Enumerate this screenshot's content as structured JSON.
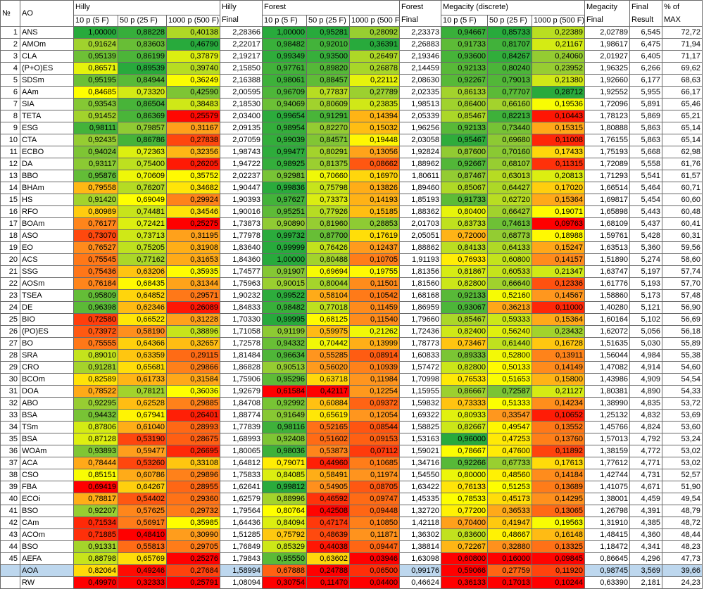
{
  "headers": {
    "no": "№",
    "ao": "AO",
    "hilly": "Hilly",
    "hilly_final_1": "Hilly",
    "hilly_final_2": "Final",
    "forest": "Forest",
    "forest_final_1": "Forest",
    "forest_final_2": "Final",
    "megacity": "Megacity (discrete)",
    "megacity_final_1": "Megacity",
    "megacity_final_2": "Final",
    "final_result_1": "Final",
    "final_result_2": "Result",
    "pct_max_1": "% of",
    "pct_max_2": "MAX",
    "sub_10p": "10 p (5 F)",
    "sub_50p": "50 p (25 F)",
    "sub_1000p": "1000 p (500 F)",
    "sub_50p_trunc": "50 p (25 F)",
    "sub_1000p_trunc": "1000 p (500 F)"
  },
  "rows": [
    {
      "n": "1",
      "ao": "ANS",
      "v": [
        "1,00000",
        "0,88228",
        "0,40138",
        "2,28366",
        "1,00000",
        "0,95281",
        "0,28092",
        "2,23373",
        "0,94667",
        "0,85733",
        "0,22389",
        "2,02789",
        "6,545",
        "72,72"
      ]
    },
    {
      "n": "2",
      "ao": "AMOm",
      "v": [
        "0,91624",
        "0,83603",
        "0,46790",
        "2,22017",
        "0,98482",
        "0,92010",
        "0,36391",
        "2,26883",
        "0,91733",
        "0,81707",
        "0,21167",
        "1,98617",
        "6,475",
        "71,94"
      ]
    },
    {
      "n": "3",
      "ao": "CLA",
      "v": [
        "0,95139",
        "0,86199",
        "0,37879",
        "2,19217",
        "0,99349",
        "0,93500",
        "0,26497",
        "2,19346",
        "0,93600",
        "0,84267",
        "0,24060",
        "2,01927",
        "6,405",
        "71,17"
      ]
    },
    {
      "n": "4",
      "ao": "(P+O)ES",
      "v": [
        "0,86571",
        "0,89539",
        "0,39740",
        "2,15850",
        "0,97761",
        "0,89820",
        "0,26878",
        "2,14459",
        "0,92133",
        "0,80240",
        "0,23952",
        "1,96325",
        "6,266",
        "69,62"
      ]
    },
    {
      "n": "5",
      "ao": "SDSm",
      "v": [
        "0,95195",
        "0,84944",
        "0,36249",
        "2,16388",
        "0,98061",
        "0,88457",
        "0,22112",
        "2,08630",
        "0,92267",
        "0,79013",
        "0,21380",
        "1,92660",
        "6,177",
        "68,63"
      ]
    },
    {
      "n": "6",
      "ao": "AAm",
      "v": [
        "0,84685",
        "0,73320",
        "0,42590",
        "2,00595",
        "0,96709",
        "0,77837",
        "0,27789",
        "2,02335",
        "0,86133",
        "0,77707",
        "0,28712",
        "1,92552",
        "5,955",
        "66,17"
      ]
    },
    {
      "n": "7",
      "ao": "SIA",
      "v": [
        "0,93543",
        "0,86504",
        "0,38483",
        "2,18530",
        "0,94069",
        "0,80609",
        "0,23835",
        "1,98513",
        "0,86400",
        "0,66160",
        "0,19536",
        "1,72096",
        "5,891",
        "65,46"
      ]
    },
    {
      "n": "8",
      "ao": "TETA",
      "v": [
        "0,91452",
        "0,86369",
        "0,25579",
        "2,03400",
        "0,99654",
        "0,91291",
        "0,14394",
        "2,05339",
        "0,85467",
        "0,82213",
        "0,10443",
        "1,78123",
        "5,869",
        "65,21"
      ]
    },
    {
      "n": "9",
      "ao": "ESG",
      "v": [
        "0,98111",
        "0,79857",
        "0,31167",
        "2,09135",
        "0,98954",
        "0,82270",
        "0,15032",
        "1,96256",
        "0,92133",
        "0,73440",
        "0,15315",
        "1,80888",
        "5,863",
        "65,14"
      ]
    },
    {
      "n": "10",
      "ao": "CTA",
      "v": [
        "0,92435",
        "0,86786",
        "0,27838",
        "2,07059",
        "0,99039",
        "0,84571",
        "0,19448",
        "2,03058",
        "0,95467",
        "0,69680",
        "0,11008",
        "1,76155",
        "5,863",
        "65,14"
      ]
    },
    {
      "n": "11",
      "ao": "ECBO",
      "v": [
        "0,94024",
        "0,72363",
        "0,32356",
        "1,98743",
        "0,99477",
        "0,80291",
        "0,13056",
        "1,92824",
        "0,87600",
        "0,70160",
        "0,17433",
        "1,75193",
        "5,668",
        "62,98"
      ]
    },
    {
      "n": "12",
      "ao": "DA",
      "v": [
        "0,93117",
        "0,75400",
        "0,26205",
        "1,94722",
        "0,98925",
        "0,81375",
        "0,08662",
        "1,88962",
        "0,92667",
        "0,68107",
        "0,11315",
        "1,72089",
        "5,558",
        "61,76"
      ]
    },
    {
      "n": "13",
      "ao": "BBO",
      "v": [
        "0,95876",
        "0,70609",
        "0,35752",
        "2,02237",
        "0,92981",
        "0,70660",
        "0,16970",
        "1,80611",
        "0,87467",
        "0,63013",
        "0,20813",
        "1,71293",
        "5,541",
        "61,57"
      ]
    },
    {
      "n": "14",
      "ao": "BHAm",
      "v": [
        "0,79558",
        "0,76207",
        "0,34682",
        "1,90447",
        "0,99836",
        "0,75798",
        "0,13826",
        "1,89460",
        "0,85067",
        "0,64427",
        "0,17020",
        "1,66514",
        "5,464",
        "60,71"
      ]
    },
    {
      "n": "15",
      "ao": "HS",
      "v": [
        "0,91420",
        "0,69049",
        "0,29924",
        "1,90393",
        "0,97627",
        "0,73373",
        "0,14193",
        "1,85193",
        "0,91733",
        "0,62720",
        "0,15364",
        "1,69817",
        "5,454",
        "60,60"
      ]
    },
    {
      "n": "16",
      "ao": "RFO",
      "v": [
        "0,80989",
        "0,74481",
        "0,34546",
        "1,90016",
        "0,95251",
        "0,77926",
        "0,15185",
        "1,88362",
        "0,80400",
        "0,66427",
        "0,19071",
        "1,65898",
        "5,443",
        "60,48"
      ]
    },
    {
      "n": "17",
      "ao": "BOAm",
      "v": [
        "0,76177",
        "0,72421",
        "0,25275",
        "1,73873",
        "0,90890",
        "0,81960",
        "0,28853",
        "2,01703",
        "0,83733",
        "0,74613",
        "0,09763",
        "1,68109",
        "5,437",
        "60,41"
      ]
    },
    {
      "n": "18",
      "ao": "ASO",
      "v": [
        "0,73070",
        "0,73713",
        "0,31195",
        "1,77978",
        "0,99732",
        "0,87700",
        "0,17619",
        "2,05051",
        "0,72000",
        "0,68773",
        "0,18988",
        "1,59761",
        "5,428",
        "60,31"
      ]
    },
    {
      "n": "19",
      "ao": "EO",
      "v": [
        "0,76527",
        "0,75205",
        "0,31908",
        "1,83640",
        "0,99999",
        "0,76426",
        "0,12437",
        "1,88862",
        "0,84133",
        "0,64133",
        "0,15247",
        "1,63513",
        "5,360",
        "59,56"
      ]
    },
    {
      "n": "20",
      "ao": "ACS",
      "v": [
        "0,75545",
        "0,77162",
        "0,31653",
        "1,84360",
        "1,00000",
        "0,80488",
        "0,10705",
        "1,91193",
        "0,76933",
        "0,60800",
        "0,14157",
        "1,51890",
        "5,274",
        "58,60"
      ]
    },
    {
      "n": "21",
      "ao": "SSG",
      "v": [
        "0,75436",
        "0,63206",
        "0,35935",
        "1,74577",
        "0,91907",
        "0,69694",
        "0,19755",
        "1,81356",
        "0,81867",
        "0,60533",
        "0,21347",
        "1,63747",
        "5,197",
        "57,74"
      ]
    },
    {
      "n": "22",
      "ao": "AOSm",
      "v": [
        "0,76184",
        "0,68435",
        "0,31344",
        "1,75963",
        "0,90015",
        "0,80044",
        "0,11501",
        "1,81560",
        "0,82800",
        "0,66640",
        "0,12336",
        "1,61776",
        "5,193",
        "57,70"
      ]
    },
    {
      "n": "23",
      "ao": "TSEA",
      "v": [
        "0,95809",
        "0,64852",
        "0,29571",
        "1,90232",
        "0,99522",
        "0,58104",
        "0,10542",
        "1,68168",
        "0,92133",
        "0,52160",
        "0,14567",
        "1,58860",
        "5,173",
        "57,48"
      ]
    },
    {
      "n": "24",
      "ao": "DE",
      "v": [
        "0,96398",
        "0,62346",
        "0,26089",
        "1,84833",
        "0,98482",
        "0,77018",
        "0,11459",
        "1,86959",
        "0,93067",
        "0,36213",
        "0,11000",
        "1,40280",
        "5,121",
        "56,90"
      ]
    },
    {
      "n": "25",
      "ao": "BIO",
      "v": [
        "0,72580",
        "0,66522",
        "0,31228",
        "1,70330",
        "0,99995",
        "0,68125",
        "0,11540",
        "1,79660",
        "0,85467",
        "0,59333",
        "0,15364",
        "1,60164",
        "5,102",
        "56,69"
      ]
    },
    {
      "n": "26",
      "ao": "(PO)ES",
      "v": [
        "0,73972",
        "0,58190",
        "0,38896",
        "1,71058",
        "0,91199",
        "0,59975",
        "0,21262",
        "1,72436",
        "0,82400",
        "0,56240",
        "0,23432",
        "1,62072",
        "5,056",
        "56,18"
      ]
    },
    {
      "n": "27",
      "ao": "BO",
      "v": [
        "0,75555",
        "0,64366",
        "0,32657",
        "1,72578",
        "0,94332",
        "0,70442",
        "0,13999",
        "1,78773",
        "0,73467",
        "0,61440",
        "0,16728",
        "1,51635",
        "5,030",
        "55,89"
      ]
    },
    {
      "n": "28",
      "ao": "SRA",
      "v": [
        "0,89010",
        "0,63359",
        "0,29115",
        "1,81484",
        "0,96634",
        "0,55285",
        "0,08914",
        "1,60833",
        "0,89333",
        "0,52800",
        "0,13911",
        "1,56044",
        "4,984",
        "55,38"
      ]
    },
    {
      "n": "29",
      "ao": "CRO",
      "v": [
        "0,91281",
        "0,65681",
        "0,29866",
        "1,86828",
        "0,90513",
        "0,56020",
        "0,10939",
        "1,57472",
        "0,82800",
        "0,50133",
        "0,14149",
        "1,47082",
        "4,914",
        "54,60"
      ]
    },
    {
      "n": "30",
      "ao": "BCOm",
      "v": [
        "0,82589",
        "0,61733",
        "0,31584",
        "1,75906",
        "0,95296",
        "0,63718",
        "0,11984",
        "1,70998",
        "0,76533",
        "0,51653",
        "0,15800",
        "1,43986",
        "4,909",
        "54,54"
      ]
    },
    {
      "n": "31",
      "ao": "DOA",
      "v": [
        "0,78522",
        "0,78121",
        "0,36036",
        "1,92679",
        "0,61584",
        "0,42117",
        "0,12254",
        "1,15955",
        "0,86667",
        "0,72587",
        "0,21127",
        "1,80381",
        "4,890",
        "54,33"
      ]
    },
    {
      "n": "32",
      "ao": "ABO",
      "v": [
        "0,92295",
        "0,62528",
        "0,29885",
        "1,84708",
        "0,92992",
        "0,60884",
        "0,09372",
        "1,59832",
        "0,73333",
        "0,51333",
        "0,14234",
        "1,38990",
        "4,835",
        "53,72"
      ]
    },
    {
      "n": "33",
      "ao": "BSA",
      "v": [
        "0,94432",
        "0,67941",
        "0,26401",
        "1,88774",
        "0,91649",
        "0,65619",
        "0,12054",
        "1,69322",
        "0,80933",
        "0,33547",
        "0,10652",
        "1,25132",
        "4,832",
        "53,69"
      ]
    },
    {
      "n": "34",
      "ao": "TSm",
      "v": [
        "0,87806",
        "0,61040",
        "0,28993",
        "1,77839",
        "0,98116",
        "0,52165",
        "0,08544",
        "1,58825",
        "0,82667",
        "0,49547",
        "0,13552",
        "1,45766",
        "4,824",
        "53,60"
      ]
    },
    {
      "n": "35",
      "ao": "BSA",
      "v": [
        "0,87128",
        "0,53190",
        "0,28675",
        "1,68993",
        "0,92408",
        "0,51602",
        "0,09153",
        "1,53163",
        "0,96000",
        "0,47253",
        "0,13760",
        "1,57013",
        "4,792",
        "53,24"
      ]
    },
    {
      "n": "36",
      "ao": "WOAm",
      "v": [
        "0,93893",
        "0,59477",
        "0,26695",
        "1,80065",
        "0,98036",
        "0,53873",
        "0,07112",
        "1,59021",
        "0,78667",
        "0,47600",
        "0,11892",
        "1,38159",
        "4,772",
        "53,02"
      ]
    },
    {
      "n": "37",
      "ao": "ACA",
      "v": [
        "0,78444",
        "0,53260",
        "0,33108",
        "1,64812",
        "0,79071",
        "0,44960",
        "0,10685",
        "1,34716",
        "0,92266",
        "0,67733",
        "0,17613",
        "1,77612",
        "4,771",
        "53,02"
      ]
    },
    {
      "n": "38",
      "ao": "CSO",
      "v": [
        "0,85151",
        "0,60786",
        "0,29896",
        "1,75833",
        "0,84085",
        "0,58491",
        "0,11974",
        "1,54550",
        "0,80000",
        "0,48560",
        "0,14184",
        "1,42744",
        "4,731",
        "52,57"
      ]
    },
    {
      "n": "39",
      "ao": "FBA",
      "v": [
        "0,69419",
        "0,64267",
        "0,28955",
        "1,62641",
        "0,99812",
        "0,54905",
        "0,08705",
        "1,63422",
        "0,76133",
        "0,51253",
        "0,13689",
        "1,41075",
        "4,671",
        "51,90"
      ]
    },
    {
      "n": "40",
      "ao": "ECOi",
      "v": [
        "0,78817",
        "0,54402",
        "0,29360",
        "1,62579",
        "0,88996",
        "0,46592",
        "0,09747",
        "1,45335",
        "0,78533",
        "0,45173",
        "0,14295",
        "1,38001",
        "4,459",
        "49,54"
      ]
    },
    {
      "n": "41",
      "ao": "BSO",
      "v": [
        "0,92207",
        "0,57625",
        "0,29732",
        "1,79564",
        "0,80764",
        "0,42508",
        "0,09448",
        "1,32720",
        "0,77200",
        "0,36533",
        "0,13065",
        "1,26798",
        "4,391",
        "48,79"
      ]
    },
    {
      "n": "42",
      "ao": "CAm",
      "v": [
        "0,71534",
        "0,56917",
        "0,35985",
        "1,64436",
        "0,84094",
        "0,47174",
        "0,10850",
        "1,42118",
        "0,70400",
        "0,41947",
        "0,19563",
        "1,31910",
        "4,385",
        "48,72"
      ]
    },
    {
      "n": "43",
      "ao": "ACOm",
      "v": [
        "0,71885",
        "0,48410",
        "0,30990",
        "1,51285",
        "0,75792",
        "0,48639",
        "0,11871",
        "1,36302",
        "0,83600",
        "0,48667",
        "0,16148",
        "1,48415",
        "4,360",
        "48,44"
      ]
    },
    {
      "n": "44",
      "ao": "BSO",
      "v": [
        "0,91331",
        "0,55813",
        "0,29705",
        "1,76849",
        "0,85329",
        "0,44038",
        "0,09447",
        "1,38814",
        "0,72267",
        "0,32880",
        "0,13325",
        "1,18472",
        "4,341",
        "48,23"
      ]
    },
    {
      "n": "45",
      "ao": "AEFA",
      "v": [
        "0,88798",
        "0,65769",
        "0,25276",
        "1,79843",
        "0,95550",
        "0,63602",
        "0,03946",
        "1,63098",
        "0,60800",
        "0,16000",
        "0,09845",
        "0,86645",
        "4,296",
        "47,73"
      ]
    },
    {
      "n": "",
      "ao": "AOA",
      "v": [
        "0,82064",
        "0,49246",
        "0,27684",
        "1,58994",
        "0,67888",
        "0,24788",
        "0,06500",
        "0,99176",
        "0,59066",
        "0,27759",
        "0,11920",
        "0,98745",
        "3,569",
        "39,66"
      ]
    },
    {
      "n": "",
      "ao": "RW",
      "v": [
        "0,49970",
        "0,32333",
        "0,25791",
        "1,08094",
        "0,30754",
        "0,11470",
        "0,04400",
        "0,46624",
        "0,36133",
        "0,17013",
        "0,10244",
        "0,63390",
        "2,181",
        "24,23"
      ]
    }
  ]
}
